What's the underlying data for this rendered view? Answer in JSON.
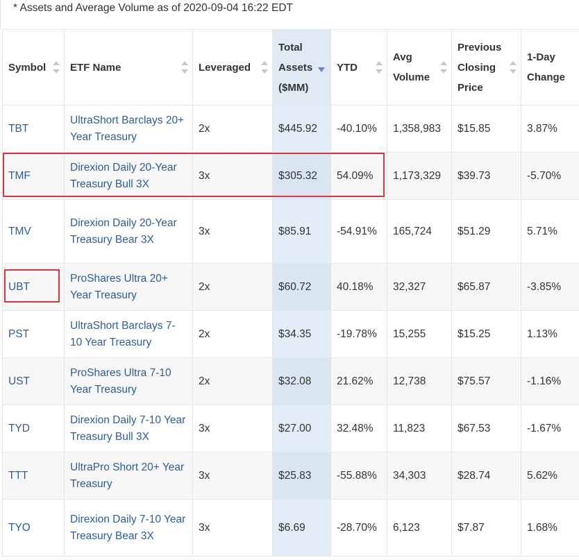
{
  "note": "* Assets and Average Volume as of 2020-09-04 16:22 EDT",
  "headers": {
    "symbol": "Symbol",
    "etf_name": "ETF Name",
    "leveraged": "Leveraged",
    "total_assets": "Total Assets ($MM)",
    "ytd": "YTD",
    "avg_volume": "Avg Volume",
    "prev_close": "Previous Closing Price",
    "one_day_change": "1-Day Change"
  },
  "rows": [
    {
      "symbol": "TBT",
      "name": "UltraShort Barclays 20+ Year Treasury",
      "leveraged": "2x",
      "assets": "$445.92",
      "ytd": "-40.10%",
      "volume": "1,358,983",
      "price": "$15.85",
      "change": "3.87%"
    },
    {
      "symbol": "TMF",
      "name": "Direxion Daily 20-Year Treasury Bull 3X",
      "leveraged": "3x",
      "assets": "$305.32",
      "ytd": "54.09%",
      "volume": "1,173,329",
      "price": "$39.73",
      "change": "-5.70%"
    },
    {
      "symbol": "TMV",
      "name": "Direxion Daily 20-Year Treasury Bear 3X",
      "leveraged": "3x",
      "assets": "$85.91",
      "ytd": "-54.91%",
      "volume": "165,724",
      "price": "$51.29",
      "change": "5.71%"
    },
    {
      "symbol": "UBT",
      "name": "ProShares Ultra 20+ Year Treasury",
      "leveraged": "2x",
      "assets": "$60.72",
      "ytd": "40.18%",
      "volume": "32,327",
      "price": "$65.87",
      "change": "-3.85%"
    },
    {
      "symbol": "PST",
      "name": "UltraShort Barclays 7-10 Year Treasury",
      "leveraged": "2x",
      "assets": "$34.35",
      "ytd": "-19.78%",
      "volume": "15,255",
      "price": "$15.25",
      "change": "1.13%"
    },
    {
      "symbol": "UST",
      "name": "ProShares Ultra 7-10 Year Treasury",
      "leveraged": "2x",
      "assets": "$32.08",
      "ytd": "21.62%",
      "volume": "12,738",
      "price": "$75.57",
      "change": "-1.16%"
    },
    {
      "symbol": "TYD",
      "name": "Direxion Daily 7-10 Year Treasury Bull 3X",
      "leveraged": "3x",
      "assets": "$27.00",
      "ytd": "32.48%",
      "volume": "11,823",
      "price": "$67.53",
      "change": "-1.67%"
    },
    {
      "symbol": "TTT",
      "name": "UltraPro Short 20+ Year Treasury",
      "leveraged": "3x",
      "assets": "$25.83",
      "ytd": "-55.88%",
      "volume": "34,303",
      "price": "$28.74",
      "change": "5.62%"
    },
    {
      "symbol": "TYO",
      "name": "Direxion Daily 7-10 Year Treasury Bear 3X",
      "leveraged": "3x",
      "assets": "$6.69",
      "ytd": "-28.70%",
      "volume": "6,123",
      "price": "$7.87",
      "change": "1.68%"
    }
  ],
  "colors": {
    "link": "#2a5ea0",
    "highlight": "#d9363e",
    "sorted_column": "#dfeaf5"
  }
}
